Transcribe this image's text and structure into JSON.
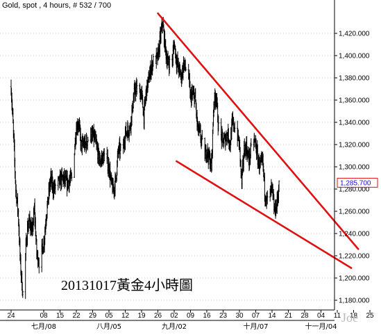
{
  "header": "Gold, spot , 4 hours, # 532 / 700",
  "annotation": "20131017黃金4小時圖",
  "watermark": "Joe",
  "chart_data": {
    "type": "ohlc",
    "series_name": "Gold, spot",
    "interval": "4 hours",
    "ylim": [
      1175,
      1440
    ],
    "y_ticks": [
      "1,180.000",
      "1,200.000",
      "1,220.000",
      "1,240.000",
      "1,260.000",
      "1,280.000",
      "1,300.000",
      "1,320.000",
      "1,340.000",
      "1,360.000",
      "1,380.000",
      "1,400.000",
      "1,420.000"
    ],
    "y_tick_values": [
      1180,
      1200,
      1220,
      1240,
      1260,
      1280,
      1300,
      1320,
      1340,
      1360,
      1380,
      1400,
      1420
    ],
    "x_ticks": [
      "24",
      "08",
      "15",
      "22",
      "29",
      "05",
      "12",
      "19",
      "26",
      "02",
      "09",
      "16",
      "23",
      "30",
      "07",
      "14",
      "21",
      "28",
      "04",
      "11",
      "18",
      "25"
    ],
    "x_tick_dates": [
      "06-24",
      "07-08",
      "07-15",
      "07-22",
      "07-29",
      "08-05",
      "08-12",
      "08-19",
      "08-26",
      "09-02",
      "09-09",
      "09-16",
      "09-23",
      "09-30",
      "10-07",
      "10-14",
      "10-21",
      "10-28",
      "11-04",
      "11-11",
      "11-18",
      "11-25"
    ],
    "month_labels": [
      {
        "label": "七月/08",
        "date": "07-08"
      },
      {
        "label": "八月/05",
        "date": "08-05"
      },
      {
        "label": "九月/02",
        "date": "09-02"
      },
      {
        "label": "十月/07",
        "date": "10-07"
      },
      {
        "label": "十一月/04",
        "date": "11-04"
      }
    ],
    "date_range": [
      "06-21",
      "11-25"
    ],
    "last_price": "1,285.700",
    "last_price_value": 1285.7,
    "price_path": [
      [
        "06-24",
        1372
      ],
      [
        "06-25",
        1330
      ],
      [
        "06-26",
        1280
      ],
      [
        "06-27",
        1260
      ],
      [
        "06-28",
        1212
      ],
      [
        "06-29",
        1186
      ],
      [
        "07-01",
        1245
      ],
      [
        "07-02",
        1252
      ],
      [
        "07-03",
        1240
      ],
      [
        "07-04",
        1262
      ],
      [
        "07-05",
        1222
      ],
      [
        "07-06",
        1215
      ],
      [
        "07-08",
        1230
      ],
      [
        "07-09",
        1255
      ],
      [
        "07-11",
        1290
      ],
      [
        "07-12",
        1280
      ],
      [
        "07-14",
        1285
      ],
      [
        "07-16",
        1290
      ],
      [
        "07-18",
        1285
      ],
      [
        "07-20",
        1290
      ],
      [
        "07-22",
        1335
      ],
      [
        "07-23",
        1340
      ],
      [
        "07-24",
        1320
      ],
      [
        "07-26",
        1320
      ],
      [
        "07-28",
        1330
      ],
      [
        "07-30",
        1325
      ],
      [
        "08-01",
        1305
      ],
      [
        "08-03",
        1310
      ],
      [
        "08-05",
        1300
      ],
      [
        "08-06",
        1285
      ],
      [
        "08-07",
        1278
      ],
      [
        "08-08",
        1290
      ],
      [
        "08-09",
        1315
      ],
      [
        "08-11",
        1315
      ],
      [
        "08-12",
        1330
      ],
      [
        "08-14",
        1335
      ],
      [
        "08-16",
        1368
      ],
      [
        "08-17",
        1370
      ],
      [
        "08-19",
        1365
      ],
      [
        "08-20",
        1345
      ],
      [
        "08-21",
        1368
      ],
      [
        "08-23",
        1388
      ],
      [
        "08-24",
        1395
      ],
      [
        "08-26",
        1398
      ],
      [
        "08-27",
        1415
      ],
      [
        "08-28",
        1430
      ],
      [
        "08-29",
        1410
      ],
      [
        "08-30",
        1395
      ],
      [
        "09-01",
        1392
      ],
      [
        "09-02",
        1412
      ],
      [
        "09-03",
        1395
      ],
      [
        "09-04",
        1388
      ],
      [
        "09-05",
        1380
      ],
      [
        "09-06",
        1392
      ],
      [
        "09-08",
        1385
      ],
      [
        "09-09",
        1362
      ],
      [
        "09-10",
        1365
      ],
      [
        "09-11",
        1362
      ],
      [
        "09-12",
        1335
      ],
      [
        "09-13",
        1330
      ],
      [
        "09-15",
        1310
      ],
      [
        "09-16",
        1315
      ],
      [
        "09-17",
        1308
      ],
      [
        "09-18",
        1300
      ],
      [
        "09-19",
        1358
      ],
      [
        "09-20",
        1365
      ],
      [
        "09-21",
        1335
      ],
      [
        "09-23",
        1322
      ],
      [
        "09-25",
        1330
      ],
      [
        "09-26",
        1320
      ],
      [
        "09-27",
        1340
      ],
      [
        "09-29",
        1330
      ],
      [
        "09-30",
        1320
      ],
      [
        "10-01",
        1285
      ],
      [
        "10-02",
        1315
      ],
      [
        "10-03",
        1318
      ],
      [
        "10-04",
        1305
      ],
      [
        "10-06",
        1325
      ],
      [
        "10-07",
        1320
      ],
      [
        "10-08",
        1305
      ],
      [
        "10-09",
        1300
      ],
      [
        "10-10",
        1305
      ],
      [
        "10-11",
        1275
      ],
      [
        "10-12",
        1270
      ],
      [
        "10-14",
        1280
      ],
      [
        "10-15",
        1260
      ],
      [
        "10-16",
        1265
      ],
      [
        "10-17",
        1283
      ]
    ],
    "trendlines": [
      {
        "color": "#e01010",
        "start": [
          "08-26",
          1438
        ],
        "end": [
          "11-20",
          1226
        ]
      },
      {
        "color": "#e01010",
        "start": [
          "09-03",
          1305
        ],
        "end": [
          "11-17",
          1209
        ]
      }
    ]
  }
}
